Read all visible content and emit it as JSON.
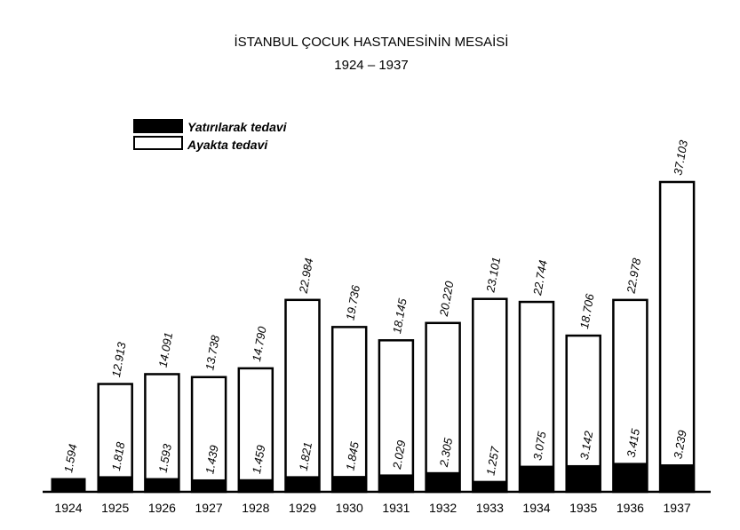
{
  "chart_data": {
    "type": "bar",
    "title": "İSTANBUL ÇOCUK HASTANESİNİN MESAİSİ",
    "subtitle": "1924 – 1937",
    "xlabel": "",
    "ylabel": "",
    "ylim": [
      0,
      40000
    ],
    "grid": false,
    "legend_position": "top-left",
    "categories": [
      "1924",
      "1925",
      "1926",
      "1927",
      "1928",
      "1929",
      "1930",
      "1931",
      "1932",
      "1933",
      "1934",
      "1935",
      "1936",
      "1937"
    ],
    "series": [
      {
        "name": "Yatırılarak tedavi",
        "color": "#000000",
        "values": [
          1594,
          1818,
          1593,
          1439,
          1459,
          1821,
          1845,
          2029,
          2305,
          1257,
          3075,
          3142,
          3415,
          3239
        ],
        "labels": [
          "1.594",
          "1.818",
          "1.593",
          "1.439",
          "1.459",
          "1.821",
          "1.845",
          "2.029",
          "2.305",
          "1.257",
          "3.075",
          "3.142",
          "3.415",
          "3.239"
        ]
      },
      {
        "name": "Ayakta tedavi",
        "color": "#ffffff",
        "values": [
          null,
          12913,
          14091,
          13738,
          14790,
          22984,
          19736,
          18145,
          20220,
          23101,
          22744,
          18706,
          22978,
          37103
        ],
        "labels": [
          "",
          "12.913",
          "14.091",
          "13.738",
          "14.790",
          "22.984",
          "19.736",
          "18.145",
          "20.220",
          "23.101",
          "22.744",
          "18.706",
          "22.978",
          "37.103"
        ]
      }
    ]
  }
}
